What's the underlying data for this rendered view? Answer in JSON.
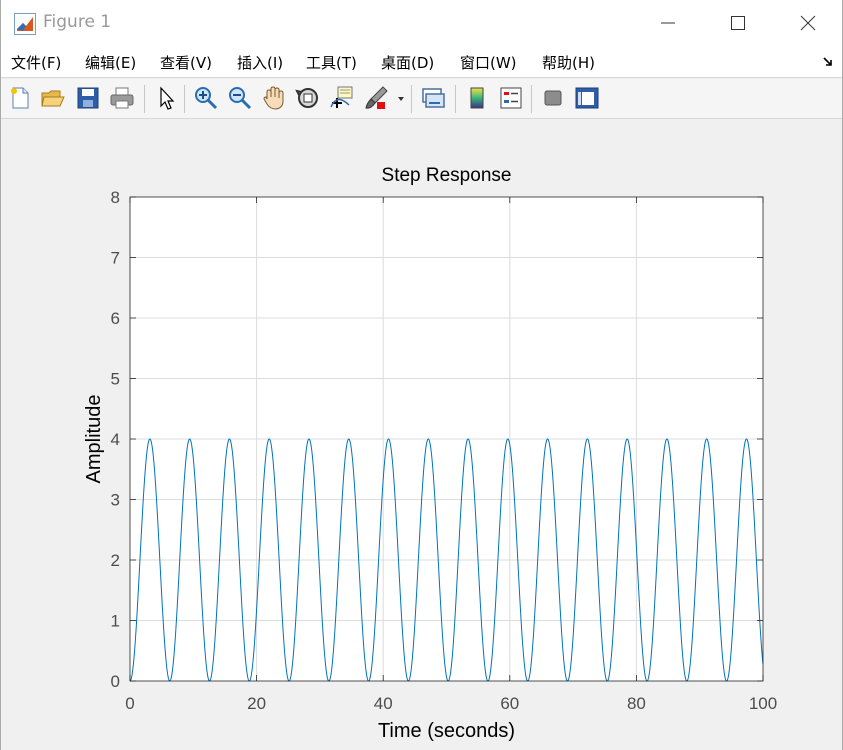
{
  "window": {
    "title": "Figure 1"
  },
  "menu": {
    "items": [
      "文件(F)",
      "编辑(E)",
      "查看(V)",
      "插入(I)",
      "工具(T)",
      "桌面(D)",
      "窗口(W)",
      "帮助(H)"
    ]
  },
  "toolbar": {
    "buttons": [
      "new-figure-icon",
      "open-file-icon",
      "save-icon",
      "print-icon",
      "edit-plot-arrow-icon",
      "zoom-in-icon",
      "zoom-out-icon",
      "pan-hand-icon",
      "rotate-3d-icon",
      "data-cursor-icon",
      "brush-icon",
      "link-plot-icon",
      "insert-colorbar-icon",
      "insert-legend-icon",
      "hide-plot-tools-icon",
      "show-plot-tools-icon"
    ]
  },
  "colors": {
    "series": "#0072bd",
    "grid": "#dcdcdc",
    "axis": "#262626",
    "tick_text": "#4d4d4d"
  },
  "chart_data": {
    "type": "line",
    "title": "Step Response",
    "xlabel": "Time (seconds)",
    "ylabel": "Amplitude",
    "xlim": [
      0,
      100
    ],
    "ylim": [
      0,
      8
    ],
    "xticks": [
      0,
      20,
      40,
      60,
      80,
      100
    ],
    "yticks": [
      0,
      1,
      2,
      3,
      4,
      5,
      6,
      7,
      8
    ],
    "grid": true,
    "series": [
      {
        "function": "2 - 2*cos(t)",
        "description": "undamped oscillation between 0 and 4, period about 6.28 s",
        "min": 0,
        "max": 4,
        "period": 6.283,
        "x_start": 0,
        "x_end": 100
      }
    ]
  }
}
